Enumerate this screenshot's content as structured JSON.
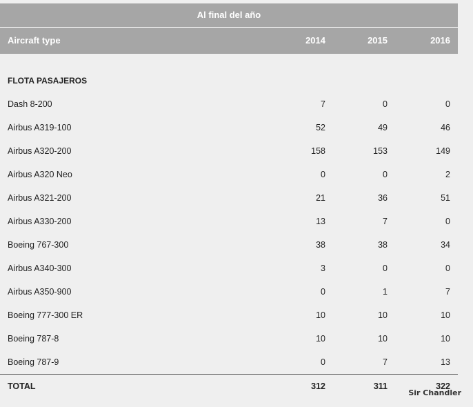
{
  "table": {
    "group_header": "Al final del año",
    "columns": {
      "type": "Aircraft type",
      "y2014": "2014",
      "y2015": "2015",
      "y2016": "2016"
    },
    "section_label": "FLOTA PASAJEROS",
    "rows": [
      {
        "type": "Dash 8-200",
        "y2014": "7",
        "y2015": "0",
        "y2016": "0"
      },
      {
        "type": "Airbus A319-100",
        "y2014": "52",
        "y2015": "49",
        "y2016": "46"
      },
      {
        "type": "Airbus A320-200",
        "y2014": "158",
        "y2015": "153",
        "y2016": "149"
      },
      {
        "type": "Airbus A320 Neo",
        "y2014": "0",
        "y2015": "0",
        "y2016": "2"
      },
      {
        "type": "Airbus A321-200",
        "y2014": "21",
        "y2015": "36",
        "y2016": "51"
      },
      {
        "type": "Airbus A330-200",
        "y2014": "13",
        "y2015": "7",
        "y2016": "0"
      },
      {
        "type": "Boeing 767-300",
        "y2014": "38",
        "y2015": "38",
        "y2016": "34"
      },
      {
        "type": "Airbus A340-300",
        "y2014": "3",
        "y2015": "0",
        "y2016": "0"
      },
      {
        "type": "Airbus A350-900",
        "y2014": "0",
        "y2015": "1",
        "y2016": "7"
      },
      {
        "type": "Boeing 777-300 ER",
        "y2014": "10",
        "y2015": "10",
        "y2016": "10"
      },
      {
        "type": "Boeing 787-8",
        "y2014": "10",
        "y2015": "10",
        "y2016": "10"
      },
      {
        "type": "Boeing 787-9",
        "y2014": "0",
        "y2015": "7",
        "y2016": "13"
      }
    ],
    "total": {
      "type": "TOTAL",
      "y2014": "312",
      "y2015": "311",
      "y2016": "322"
    }
  },
  "watermark": "Sir Chandler"
}
